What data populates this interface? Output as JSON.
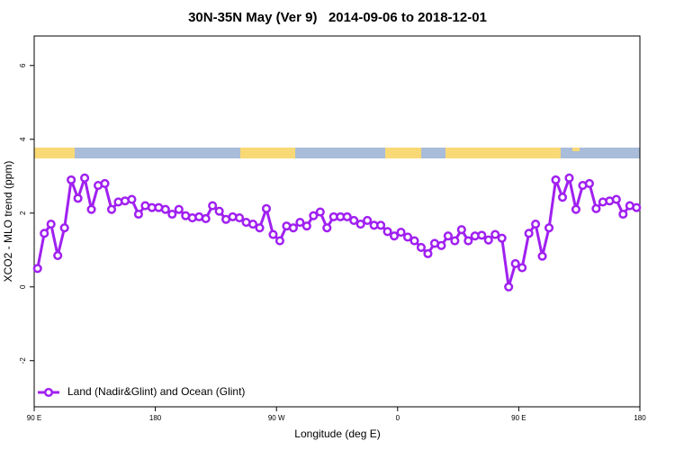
{
  "chart_data": {
    "type": "line",
    "title": "30N-35N May (Ver 9)   2014-09-06 to 2018-12-01",
    "xlabel": "Longitude (deg E)",
    "ylabel": "XCO2 - MLO trend (ppm)",
    "x": [
      92.5,
      97.5,
      102.5,
      107.5,
      112.5,
      117.5,
      122.5,
      127.5,
      132.5,
      137.5,
      142.5,
      147.5,
      152.5,
      157.5,
      162.5,
      167.5,
      172.5,
      177.5,
      182.5,
      187.5,
      192.5,
      197.5,
      202.5,
      207.5,
      212.5,
      217.5,
      222.5,
      227.5,
      232.5,
      237.5,
      242.5,
      247.5,
      252.5,
      257.5,
      262.5,
      267.5,
      272.5,
      277.5,
      282.5,
      287.5,
      292.5,
      297.5,
      302.5,
      307.5,
      312.5,
      317.5,
      322.5,
      327.5,
      332.5,
      337.5,
      342.5,
      347.5,
      352.5,
      357.5,
      362.5,
      367.5,
      372.5,
      377.5,
      382.5,
      387.5,
      392.5,
      397.5,
      402.5,
      407.5,
      412.5,
      417.5,
      422.5,
      427.5,
      432.5,
      437.5,
      442.5,
      447.5,
      452.5,
      457.5,
      462.5,
      467.5,
      472.5,
      477.5,
      482.5,
      487.5,
      492.5,
      497.5,
      502.5,
      507.5,
      512.5,
      517.5,
      522.5,
      527.5,
      532.5,
      537.5
    ],
    "series": [
      {
        "name": "Land (Nadir&Glint) and Ocean (Glint)",
        "color": "#a020f0",
        "values": [
          0.5,
          1.45,
          1.7,
          0.85,
          1.6,
          2.9,
          2.4,
          2.95,
          2.1,
          2.75,
          2.8,
          2.1,
          2.3,
          2.33,
          2.37,
          1.97,
          2.2,
          2.15,
          2.15,
          2.1,
          1.97,
          2.1,
          1.93,
          1.87,
          1.9,
          1.85,
          2.2,
          2.05,
          1.83,
          1.9,
          1.87,
          1.75,
          1.7,
          1.6,
          2.12,
          1.42,
          1.25,
          1.65,
          1.6,
          1.75,
          1.65,
          1.93,
          2.03,
          1.6,
          1.9,
          1.9,
          1.9,
          1.8,
          1.7,
          1.8,
          1.67,
          1.67,
          1.5,
          1.38,
          1.48,
          1.35,
          1.25,
          1.07,
          0.9,
          1.18,
          1.12,
          1.38,
          1.25,
          1.55,
          1.25,
          1.38,
          1.4,
          1.27,
          1.42,
          1.32,
          0.0,
          0.63,
          0.52,
          1.45,
          1.7,
          0.83,
          1.6,
          2.9,
          2.43,
          2.95,
          2.1,
          2.75,
          2.8,
          2.12,
          2.3,
          2.33,
          2.37,
          1.97,
          2.2,
          2.15
        ]
      }
    ],
    "xlim": [
      90,
      540
    ],
    "xticks": [
      {
        "value": 90,
        "label": "90 E"
      },
      {
        "value": 180,
        "label": "180"
      },
      {
        "value": 270,
        "label": "90 W"
      },
      {
        "value": 360,
        "label": "0"
      },
      {
        "value": 450,
        "label": "90 E"
      },
      {
        "value": 540,
        "label": "180"
      }
    ],
    "ylim": [
      -3.25,
      6.8
    ],
    "yticks": [
      -2,
      0,
      2,
      4,
      6
    ],
    "legend": "bottomleft"
  }
}
